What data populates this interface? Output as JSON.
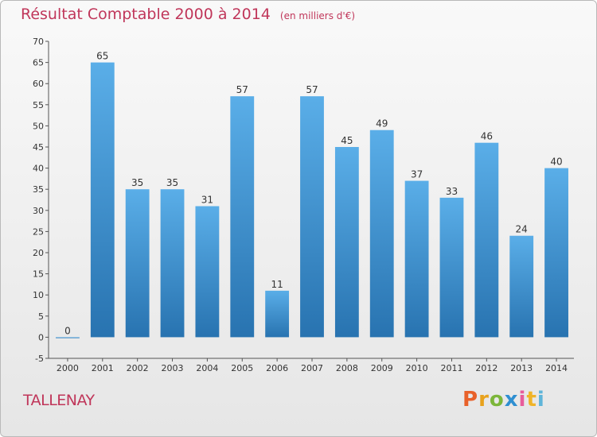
{
  "title": {
    "main": "Résultat Comptable 2000 à 2014",
    "unit": "(en milliers d'€)"
  },
  "footer": {
    "town": "TALLENAY",
    "logo_letters": [
      "P",
      "r",
      "o",
      "x",
      "i",
      "t",
      "i"
    ],
    "logo_colors": [
      "#e8612a",
      "#e8a21d",
      "#7cb63a",
      "#2f8fd1",
      "#e85c9b",
      "#f0b429",
      "#5fb5d9"
    ]
  },
  "colors": {
    "bar_top": "#5aaee8",
    "bar_bottom": "#2873b0",
    "title": "#c0365a",
    "grid": "#dddddd"
  },
  "chart_data": {
    "type": "bar",
    "categories": [
      "2000",
      "2001",
      "2002",
      "2003",
      "2004",
      "2005",
      "2006",
      "2007",
      "2008",
      "2009",
      "2010",
      "2011",
      "2012",
      "2013",
      "2014"
    ],
    "values": [
      0,
      65,
      35,
      35,
      31,
      57,
      11,
      57,
      45,
      49,
      37,
      33,
      46,
      24,
      40
    ],
    "title": "Résultat Comptable 2000 à 2014",
    "xlabel": "",
    "ylabel": "",
    "ylim": [
      -5,
      70
    ],
    "yticks": [
      -5,
      0,
      5,
      10,
      15,
      20,
      25,
      30,
      35,
      40,
      45,
      50,
      55,
      60,
      65,
      70
    ],
    "grid": false,
    "legend": "none"
  }
}
